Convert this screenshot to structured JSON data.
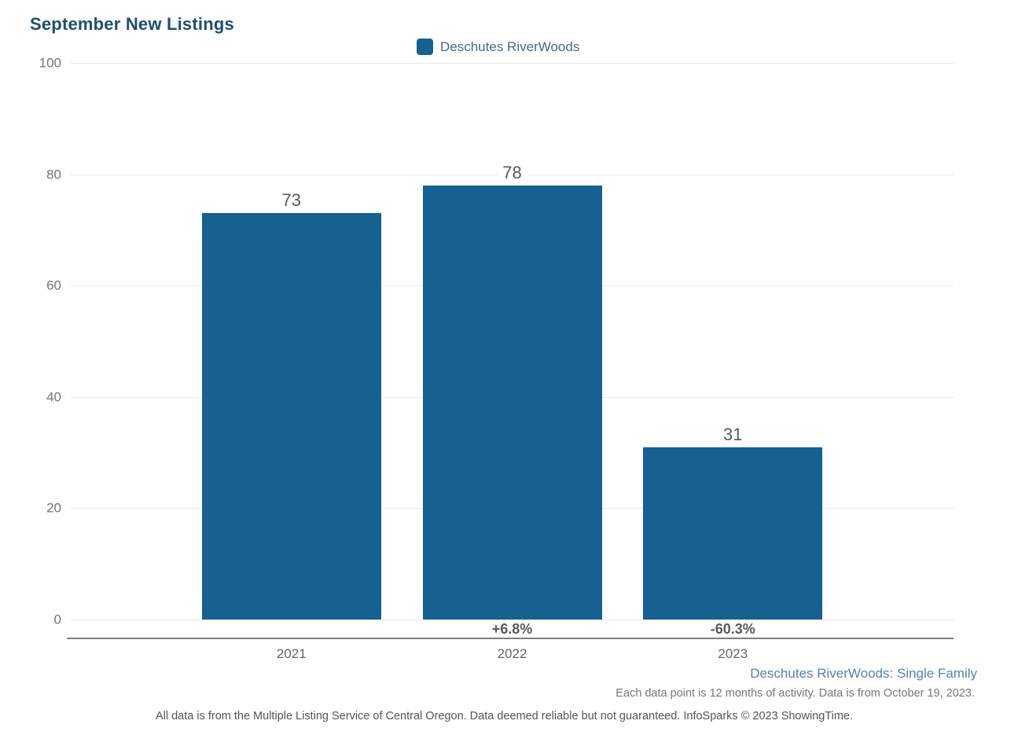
{
  "header": {
    "title": "September New Listings"
  },
  "legend": {
    "items": [
      {
        "label": "Deschutes RiverWoods",
        "color": "#166191"
      }
    ]
  },
  "chart_data": {
    "type": "bar",
    "title": "September New Listings",
    "categories": [
      "2021",
      "2022",
      "2023"
    ],
    "series": [
      {
        "name": "Deschutes RiverWoods",
        "values": [
          73,
          78,
          31
        ]
      }
    ],
    "value_labels": [
      "73",
      "78",
      "31"
    ],
    "pct_change_labels": [
      "",
      "+6.8%",
      "-60.3%"
    ],
    "ylim": [
      0,
      100
    ],
    "yticks": [
      0,
      20,
      40,
      60,
      80,
      100
    ],
    "grid": "horizontal",
    "legend_position": "top-center",
    "bar_color": "#166191",
    "xlabel": "",
    "ylabel": ""
  },
  "footer": {
    "series_scope_link": "Deschutes RiverWoods: Single Family",
    "data_note": "Each data point is 12 months of activity. Data is from October 19, 2023.",
    "disclaimer": "All data is from the Multiple Listing Service of Central Oregon. Data deemed reliable but not guaranteed. InfoSparks © 2023 ShowingTime."
  },
  "colors": {
    "title": "#204e6f",
    "bar": "#166191",
    "legend_text": "#47698a",
    "link": "#5581b0",
    "tick_label": "#757575",
    "value_label": "#58595b",
    "pct_label": "#595959",
    "category_label": "#666666",
    "gridline": "#e8e8e8",
    "axis_line": "#7f7f7f",
    "note_text": "#777777",
    "disclaimer_text": "#555555"
  }
}
